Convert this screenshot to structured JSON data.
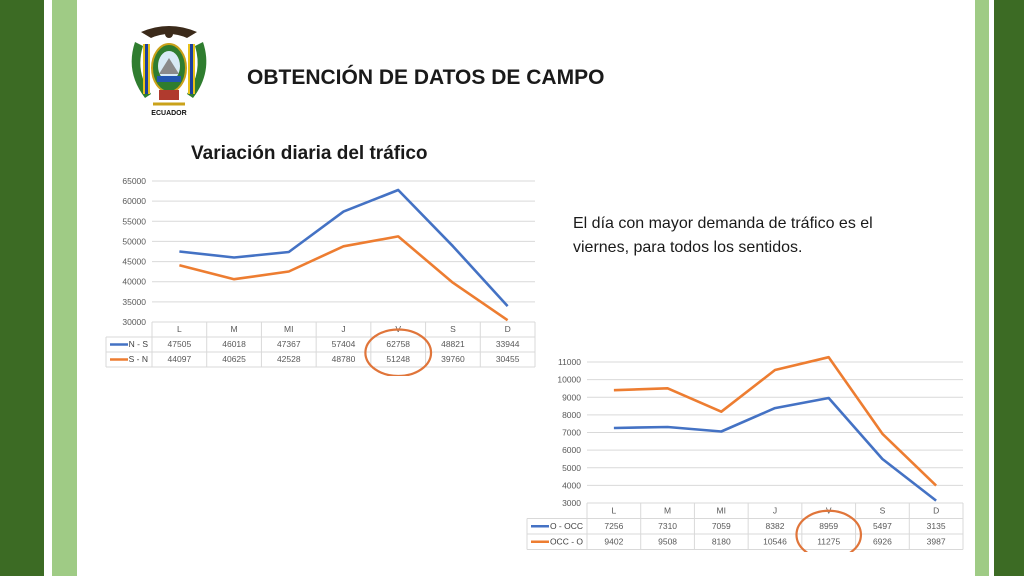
{
  "slide": {
    "title": "OBTENCIÓN DE DATOS DE CAMPO",
    "chart1_title": "Variación diaria del tráfico",
    "note": "El día con mayor demanda de tráfico es el viernes, para todos los sentidos.",
    "crest_label": "ECUADOR"
  },
  "colors": {
    "blue": "#4472c4",
    "orange": "#ed7d31",
    "highlight": "#e0753a",
    "green_dark": "#3c6b24",
    "green_light": "#9fcb85"
  },
  "chart_data": [
    {
      "type": "line",
      "categories": [
        "L",
        "M",
        "MI",
        "J",
        "V",
        "S",
        "D"
      ],
      "series": [
        {
          "name": "N - S",
          "values": [
            47505,
            46018,
            47367,
            57404,
            62758,
            48821,
            33944
          ]
        },
        {
          "name": "S - N",
          "values": [
            44097,
            40625,
            42528,
            48780,
            51248,
            39760,
            30455
          ]
        }
      ],
      "yticks": [
        30000,
        35000,
        40000,
        45000,
        50000,
        55000,
        60000,
        65000
      ],
      "ylim": [
        30000,
        65000
      ],
      "grid": true,
      "data_table": true,
      "highlighted_category": "V"
    },
    {
      "type": "line",
      "categories": [
        "L",
        "M",
        "MI",
        "J",
        "V",
        "S",
        "D"
      ],
      "series": [
        {
          "name": "O - OCC",
          "values": [
            7256,
            7310,
            7059,
            8382,
            8959,
            5497,
            3135
          ]
        },
        {
          "name": "OCC - O",
          "values": [
            9402,
            9508,
            8180,
            10546,
            11275,
            6926,
            3987
          ]
        }
      ],
      "yticks": [
        3000,
        4000,
        5000,
        6000,
        7000,
        8000,
        9000,
        10000,
        11000
      ],
      "ylim": [
        3000,
        11000
      ],
      "grid": true,
      "data_table": true,
      "highlighted_category": "V"
    }
  ]
}
